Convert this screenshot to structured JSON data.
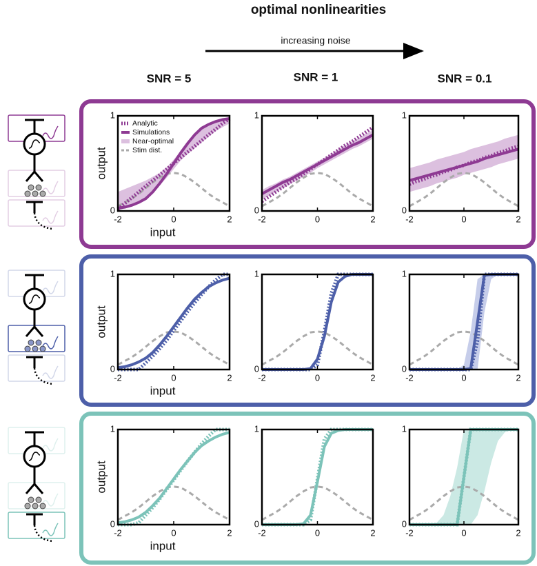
{
  "header": {
    "title": "optimal nonlinearities",
    "arrow_label": "increasing noise",
    "column_labels": [
      "SNR = 5",
      "SNR = 1",
      "SNR = 0.1"
    ]
  },
  "chart_data": [
    {
      "type": "line",
      "xlabel": "input",
      "ylabel": "output",
      "legend": true,
      "xlim": [
        -2,
        2
      ],
      "ylim": [
        0,
        1
      ],
      "xticks": [
        -2,
        0,
        2
      ],
      "yticks": [
        0,
        1
      ],
      "x": [
        -2,
        -1.75,
        -1.5,
        -1.25,
        -1,
        -0.75,
        -0.5,
        -0.25,
        0,
        0.25,
        0.5,
        0.75,
        1,
        1.25,
        1.5,
        1.75,
        2
      ],
      "series": [
        {
          "name": "Analytic",
          "kind": "dotted",
          "color": "#8e3a93",
          "values": [
            0.02,
            0.08,
            0.14,
            0.2,
            0.26,
            0.32,
            0.38,
            0.44,
            0.5,
            0.56,
            0.62,
            0.68,
            0.74,
            0.8,
            0.86,
            0.92,
            0.97
          ]
        },
        {
          "name": "Simulations",
          "kind": "solid",
          "color": "#8e3a93",
          "values": [
            0.03,
            0.04,
            0.06,
            0.09,
            0.13,
            0.2,
            0.29,
            0.39,
            0.5,
            0.61,
            0.71,
            0.8,
            0.87,
            0.91,
            0.94,
            0.96,
            0.97
          ]
        },
        {
          "name": "Near-optimal",
          "kind": "band",
          "color": "#dcc0df",
          "lower": [
            0,
            0.03,
            0.06,
            0.1,
            0.14,
            0.2,
            0.27,
            0.35,
            0.44,
            0.53,
            0.6,
            0.66,
            0.72,
            0.78,
            0.84,
            0.88,
            0.92
          ],
          "upper": [
            0.2,
            0.23,
            0.26,
            0.29,
            0.32,
            0.36,
            0.4,
            0.46,
            0.54,
            0.63,
            0.72,
            0.8,
            0.87,
            0.92,
            0.95,
            0.97,
            0.99
          ]
        },
        {
          "name": "Stim dist.",
          "kind": "dashed",
          "color": "#aaaaaa",
          "values": [
            0.05,
            0.09,
            0.13,
            0.18,
            0.24,
            0.3,
            0.35,
            0.39,
            0.4,
            0.39,
            0.35,
            0.3,
            0.24,
            0.18,
            0.13,
            0.09,
            0.05
          ]
        }
      ]
    },
    {
      "type": "line",
      "xlim": [
        -2,
        2
      ],
      "ylim": [
        0,
        1
      ],
      "xticks": [
        -2,
        0,
        2
      ],
      "yticks": [
        0,
        1
      ],
      "x": [
        -2,
        -1.75,
        -1.5,
        -1.25,
        -1,
        -0.75,
        -0.5,
        -0.25,
        0,
        0.25,
        0.5,
        0.75,
        1,
        1.25,
        1.5,
        1.75,
        2
      ],
      "series": [
        {
          "kind": "dotted",
          "color": "#8e3a93",
          "values": [
            0.1,
            0.15,
            0.2,
            0.25,
            0.3,
            0.34,
            0.39,
            0.44,
            0.49,
            0.54,
            0.59,
            0.64,
            0.69,
            0.73,
            0.78,
            0.83,
            0.88
          ]
        },
        {
          "kind": "solid",
          "color": "#8e3a93",
          "values": [
            0.18,
            0.22,
            0.26,
            0.3,
            0.33,
            0.37,
            0.41,
            0.45,
            0.49,
            0.53,
            0.57,
            0.61,
            0.65,
            0.69,
            0.72,
            0.76,
            0.8
          ]
        },
        {
          "kind": "band",
          "color": "#dcc0df",
          "lower": [
            0.12,
            0.16,
            0.2,
            0.24,
            0.28,
            0.32,
            0.36,
            0.4,
            0.45,
            0.49,
            0.53,
            0.57,
            0.61,
            0.65,
            0.68,
            0.72,
            0.76
          ],
          "upper": [
            0.22,
            0.26,
            0.29,
            0.33,
            0.36,
            0.4,
            0.44,
            0.48,
            0.52,
            0.56,
            0.6,
            0.65,
            0.69,
            0.73,
            0.77,
            0.81,
            0.85
          ]
        },
        {
          "kind": "dashed",
          "color": "#aaaaaa",
          "values": [
            0.05,
            0.09,
            0.13,
            0.18,
            0.24,
            0.3,
            0.35,
            0.39,
            0.4,
            0.39,
            0.35,
            0.3,
            0.24,
            0.18,
            0.13,
            0.09,
            0.05
          ]
        }
      ]
    },
    {
      "type": "line",
      "xlim": [
        -2,
        2
      ],
      "ylim": [
        0,
        1
      ],
      "xticks": [
        -2,
        0,
        2
      ],
      "yticks": [
        0,
        1
      ],
      "x": [
        -2,
        -1.75,
        -1.5,
        -1.25,
        -1,
        -0.75,
        -0.5,
        -0.25,
        0,
        0.25,
        0.5,
        0.75,
        1,
        1.25,
        1.5,
        1.75,
        2
      ],
      "series": [
        {
          "kind": "dotted",
          "color": "#8e3a93",
          "values": [
            0.28,
            0.31,
            0.33,
            0.36,
            0.38,
            0.41,
            0.43,
            0.46,
            0.48,
            0.51,
            0.53,
            0.56,
            0.58,
            0.61,
            0.63,
            0.66,
            0.68
          ]
        },
        {
          "kind": "solid",
          "color": "#8e3a93",
          "values": [
            0.32,
            0.34,
            0.36,
            0.38,
            0.4,
            0.42,
            0.44,
            0.46,
            0.48,
            0.5,
            0.52,
            0.55,
            0.57,
            0.59,
            0.61,
            0.63,
            0.65
          ]
        },
        {
          "kind": "band",
          "color": "#dcc0df",
          "lower": [
            0.2,
            0.22,
            0.24,
            0.26,
            0.29,
            0.31,
            0.33,
            0.35,
            0.38,
            0.4,
            0.42,
            0.44,
            0.46,
            0.49,
            0.51,
            0.53,
            0.55
          ],
          "upper": [
            0.45,
            0.47,
            0.49,
            0.51,
            0.54,
            0.56,
            0.58,
            0.6,
            0.62,
            0.65,
            0.67,
            0.69,
            0.71,
            0.73,
            0.76,
            0.78,
            0.8
          ]
        },
        {
          "kind": "dashed",
          "color": "#aaaaaa",
          "values": [
            0.05,
            0.09,
            0.13,
            0.18,
            0.24,
            0.3,
            0.35,
            0.39,
            0.4,
            0.39,
            0.35,
            0.3,
            0.24,
            0.18,
            0.13,
            0.09,
            0.05
          ]
        }
      ]
    },
    {
      "type": "line",
      "xlabel": "input",
      "ylabel": "output",
      "xlim": [
        -2,
        2
      ],
      "ylim": [
        0,
        1
      ],
      "xticks": [
        -2,
        0,
        2
      ],
      "yticks": [
        0,
        1
      ],
      "x": [
        -2,
        -1.75,
        -1.5,
        -1.25,
        -1,
        -0.75,
        -0.5,
        -0.25,
        0,
        0.25,
        0.5,
        0.75,
        1,
        1.25,
        1.5,
        1.75,
        2
      ],
      "series": [
        {
          "kind": "dotted",
          "color": "#4d5fa9",
          "values": [
            0,
            0,
            0,
            0,
            0.07,
            0.14,
            0.22,
            0.31,
            0.41,
            0.51,
            0.61,
            0.7,
            0.79,
            0.87,
            0.94,
            1,
            1
          ]
        },
        {
          "kind": "solid",
          "color": "#4d5fa9",
          "values": [
            0.02,
            0.03,
            0.05,
            0.08,
            0.12,
            0.18,
            0.26,
            0.35,
            0.45,
            0.55,
            0.65,
            0.74,
            0.81,
            0.87,
            0.91,
            0.94,
            0.96
          ]
        },
        {
          "kind": "dashed",
          "color": "#aaaaaa",
          "values": [
            0.05,
            0.09,
            0.13,
            0.18,
            0.24,
            0.3,
            0.35,
            0.39,
            0.4,
            0.39,
            0.35,
            0.3,
            0.24,
            0.18,
            0.13,
            0.09,
            0.05
          ]
        }
      ]
    },
    {
      "type": "line",
      "xlim": [
        -2,
        2
      ],
      "ylim": [
        0,
        1
      ],
      "xticks": [
        -2,
        0,
        2
      ],
      "yticks": [
        0,
        1
      ],
      "x": [
        -2,
        -1.75,
        -1.5,
        -1.25,
        -1,
        -0.75,
        -0.5,
        -0.25,
        0,
        0.25,
        0.5,
        0.75,
        1,
        1.25,
        1.5,
        1.75,
        2
      ],
      "series": [
        {
          "kind": "dotted",
          "color": "#4d5fa9",
          "values": [
            0,
            0,
            0,
            0,
            0,
            0,
            0,
            0,
            0.05,
            0.4,
            0.8,
            1,
            1,
            1,
            1,
            1,
            1
          ]
        },
        {
          "kind": "solid",
          "color": "#4d5fa9",
          "values": [
            0,
            0,
            0,
            0,
            0,
            0,
            0,
            0.01,
            0.11,
            0.35,
            0.71,
            0.92,
            0.98,
            1,
            1,
            1,
            1
          ]
        },
        {
          "kind": "dashed",
          "color": "#aaaaaa",
          "values": [
            0.05,
            0.09,
            0.13,
            0.18,
            0.24,
            0.3,
            0.35,
            0.39,
            0.4,
            0.39,
            0.35,
            0.3,
            0.24,
            0.18,
            0.13,
            0.09,
            0.05
          ]
        }
      ]
    },
    {
      "type": "line",
      "xlim": [
        -2,
        2
      ],
      "ylim": [
        0,
        1
      ],
      "xticks": [
        -2,
        0,
        2
      ],
      "yticks": [
        0,
        1
      ],
      "x": [
        -2,
        -1.75,
        -1.5,
        -1.25,
        -1,
        -0.75,
        -0.5,
        -0.25,
        0,
        0.25,
        0.5,
        0.75,
        1,
        1.25,
        1.5,
        1.75,
        2
      ],
      "series": [
        {
          "kind": "dotted",
          "color": "#4d5fa9",
          "values": [
            0,
            0,
            0,
            0,
            0,
            0,
            0,
            0,
            0,
            0,
            0.3,
            1,
            1,
            1,
            1,
            1,
            1
          ]
        },
        {
          "kind": "solid",
          "color": "#4d5fa9",
          "values": [
            0,
            0,
            0,
            0,
            0,
            0,
            0,
            0,
            0,
            0.01,
            0.5,
            0.99,
            1,
            1,
            1,
            1,
            1
          ]
        },
        {
          "kind": "band",
          "color": "#c6cdea",
          "lower": [
            0,
            0,
            0,
            0,
            0,
            0,
            0,
            0,
            0,
            0,
            0,
            0.6,
            0.95,
            1,
            1,
            1,
            1
          ],
          "upper": [
            0,
            0,
            0,
            0,
            0,
            0,
            0,
            0,
            0.05,
            0.4,
            0.95,
            1,
            1,
            1,
            1,
            1,
            1
          ]
        },
        {
          "kind": "dashed",
          "color": "#aaaaaa",
          "values": [
            0.05,
            0.09,
            0.13,
            0.18,
            0.24,
            0.3,
            0.35,
            0.39,
            0.4,
            0.39,
            0.35,
            0.3,
            0.24,
            0.18,
            0.13,
            0.09,
            0.05
          ]
        }
      ]
    },
    {
      "type": "line",
      "xlabel": "input",
      "ylabel": "output",
      "xlim": [
        -2,
        2
      ],
      "ylim": [
        0,
        1
      ],
      "xticks": [
        -2,
        0,
        2
      ],
      "yticks": [
        0,
        1
      ],
      "x": [
        -2,
        -1.75,
        -1.5,
        -1.25,
        -1,
        -0.75,
        -0.5,
        -0.25,
        0,
        0.25,
        0.5,
        0.75,
        1,
        1.25,
        1.5,
        1.75,
        2
      ],
      "series": [
        {
          "kind": "dotted",
          "color": "#7cc3b9",
          "values": [
            0,
            0,
            0,
            0.02,
            0.1,
            0.18,
            0.27,
            0.37,
            0.47,
            0.57,
            0.67,
            0.76,
            0.85,
            0.93,
            1,
            1,
            1
          ]
        },
        {
          "kind": "solid",
          "color": "#7cc3b9",
          "values": [
            0.02,
            0.03,
            0.05,
            0.08,
            0.13,
            0.2,
            0.28,
            0.38,
            0.48,
            0.58,
            0.67,
            0.76,
            0.83,
            0.88,
            0.92,
            0.95,
            0.97
          ]
        },
        {
          "kind": "dashed",
          "color": "#aaaaaa",
          "values": [
            0.05,
            0.09,
            0.13,
            0.18,
            0.24,
            0.3,
            0.35,
            0.39,
            0.4,
            0.39,
            0.35,
            0.3,
            0.24,
            0.18,
            0.13,
            0.09,
            0.05
          ]
        }
      ]
    },
    {
      "type": "line",
      "xlim": [
        -2,
        2
      ],
      "ylim": [
        0,
        1
      ],
      "xticks": [
        -2,
        0,
        2
      ],
      "yticks": [
        0,
        1
      ],
      "x": [
        -2,
        -1.75,
        -1.5,
        -1.25,
        -1,
        -0.75,
        -0.5,
        -0.25,
        0,
        0.25,
        0.5,
        0.75,
        1,
        1.25,
        1.5,
        1.75,
        2
      ],
      "series": [
        {
          "kind": "dotted",
          "color": "#7cc3b9",
          "values": [
            0,
            0,
            0,
            0,
            0,
            0,
            0,
            0.05,
            0.48,
            0.9,
            1,
            1,
            1,
            1,
            1,
            1,
            1
          ]
        },
        {
          "kind": "solid",
          "color": "#7cc3b9",
          "values": [
            0,
            0,
            0,
            0,
            0,
            0,
            0.01,
            0.1,
            0.45,
            0.82,
            0.96,
            0.99,
            1,
            1,
            1,
            1,
            1
          ]
        },
        {
          "kind": "dashed",
          "color": "#aaaaaa",
          "values": [
            0.05,
            0.09,
            0.13,
            0.18,
            0.24,
            0.3,
            0.35,
            0.39,
            0.4,
            0.39,
            0.35,
            0.3,
            0.24,
            0.18,
            0.13,
            0.09,
            0.05
          ]
        }
      ]
    },
    {
      "type": "line",
      "xlim": [
        -2,
        2
      ],
      "ylim": [
        0,
        1
      ],
      "xticks": [
        -2,
        0,
        2
      ],
      "yticks": [
        0,
        1
      ],
      "x": [
        -2,
        -1.75,
        -1.5,
        -1.25,
        -1,
        -0.75,
        -0.5,
        -0.25,
        0,
        0.25,
        0.5,
        0.75,
        1,
        1.25,
        1.5,
        1.75,
        2
      ],
      "series": [
        {
          "kind": "dotted",
          "color": "#7cc3b9",
          "values": [
            0,
            0,
            0,
            0,
            0,
            0,
            0,
            0,
            0.5,
            1,
            1,
            1,
            1,
            1,
            1,
            1,
            1
          ]
        },
        {
          "kind": "solid",
          "color": "#7cc3b9",
          "values": [
            0,
            0,
            0,
            0,
            0,
            0,
            0,
            0,
            0.5,
            1,
            1,
            1,
            1,
            1,
            1,
            1,
            1
          ]
        },
        {
          "kind": "band",
          "color": "#cbe9e4",
          "lower": [
            0,
            0,
            0,
            0,
            0,
            0,
            0,
            0,
            0,
            0,
            0.1,
            0.35,
            0.65,
            0.88,
            0.97,
            1,
            1
          ],
          "upper": [
            0,
            0,
            0,
            0,
            0.02,
            0.1,
            0.3,
            0.6,
            1,
            1,
            1,
            1,
            1,
            1,
            1,
            1,
            1
          ]
        },
        {
          "kind": "dashed",
          "color": "#aaaaaa",
          "values": [
            0.05,
            0.09,
            0.13,
            0.18,
            0.24,
            0.3,
            0.35,
            0.39,
            0.4,
            0.39,
            0.35,
            0.3,
            0.24,
            0.18,
            0.13,
            0.09,
            0.05
          ]
        }
      ]
    }
  ]
}
